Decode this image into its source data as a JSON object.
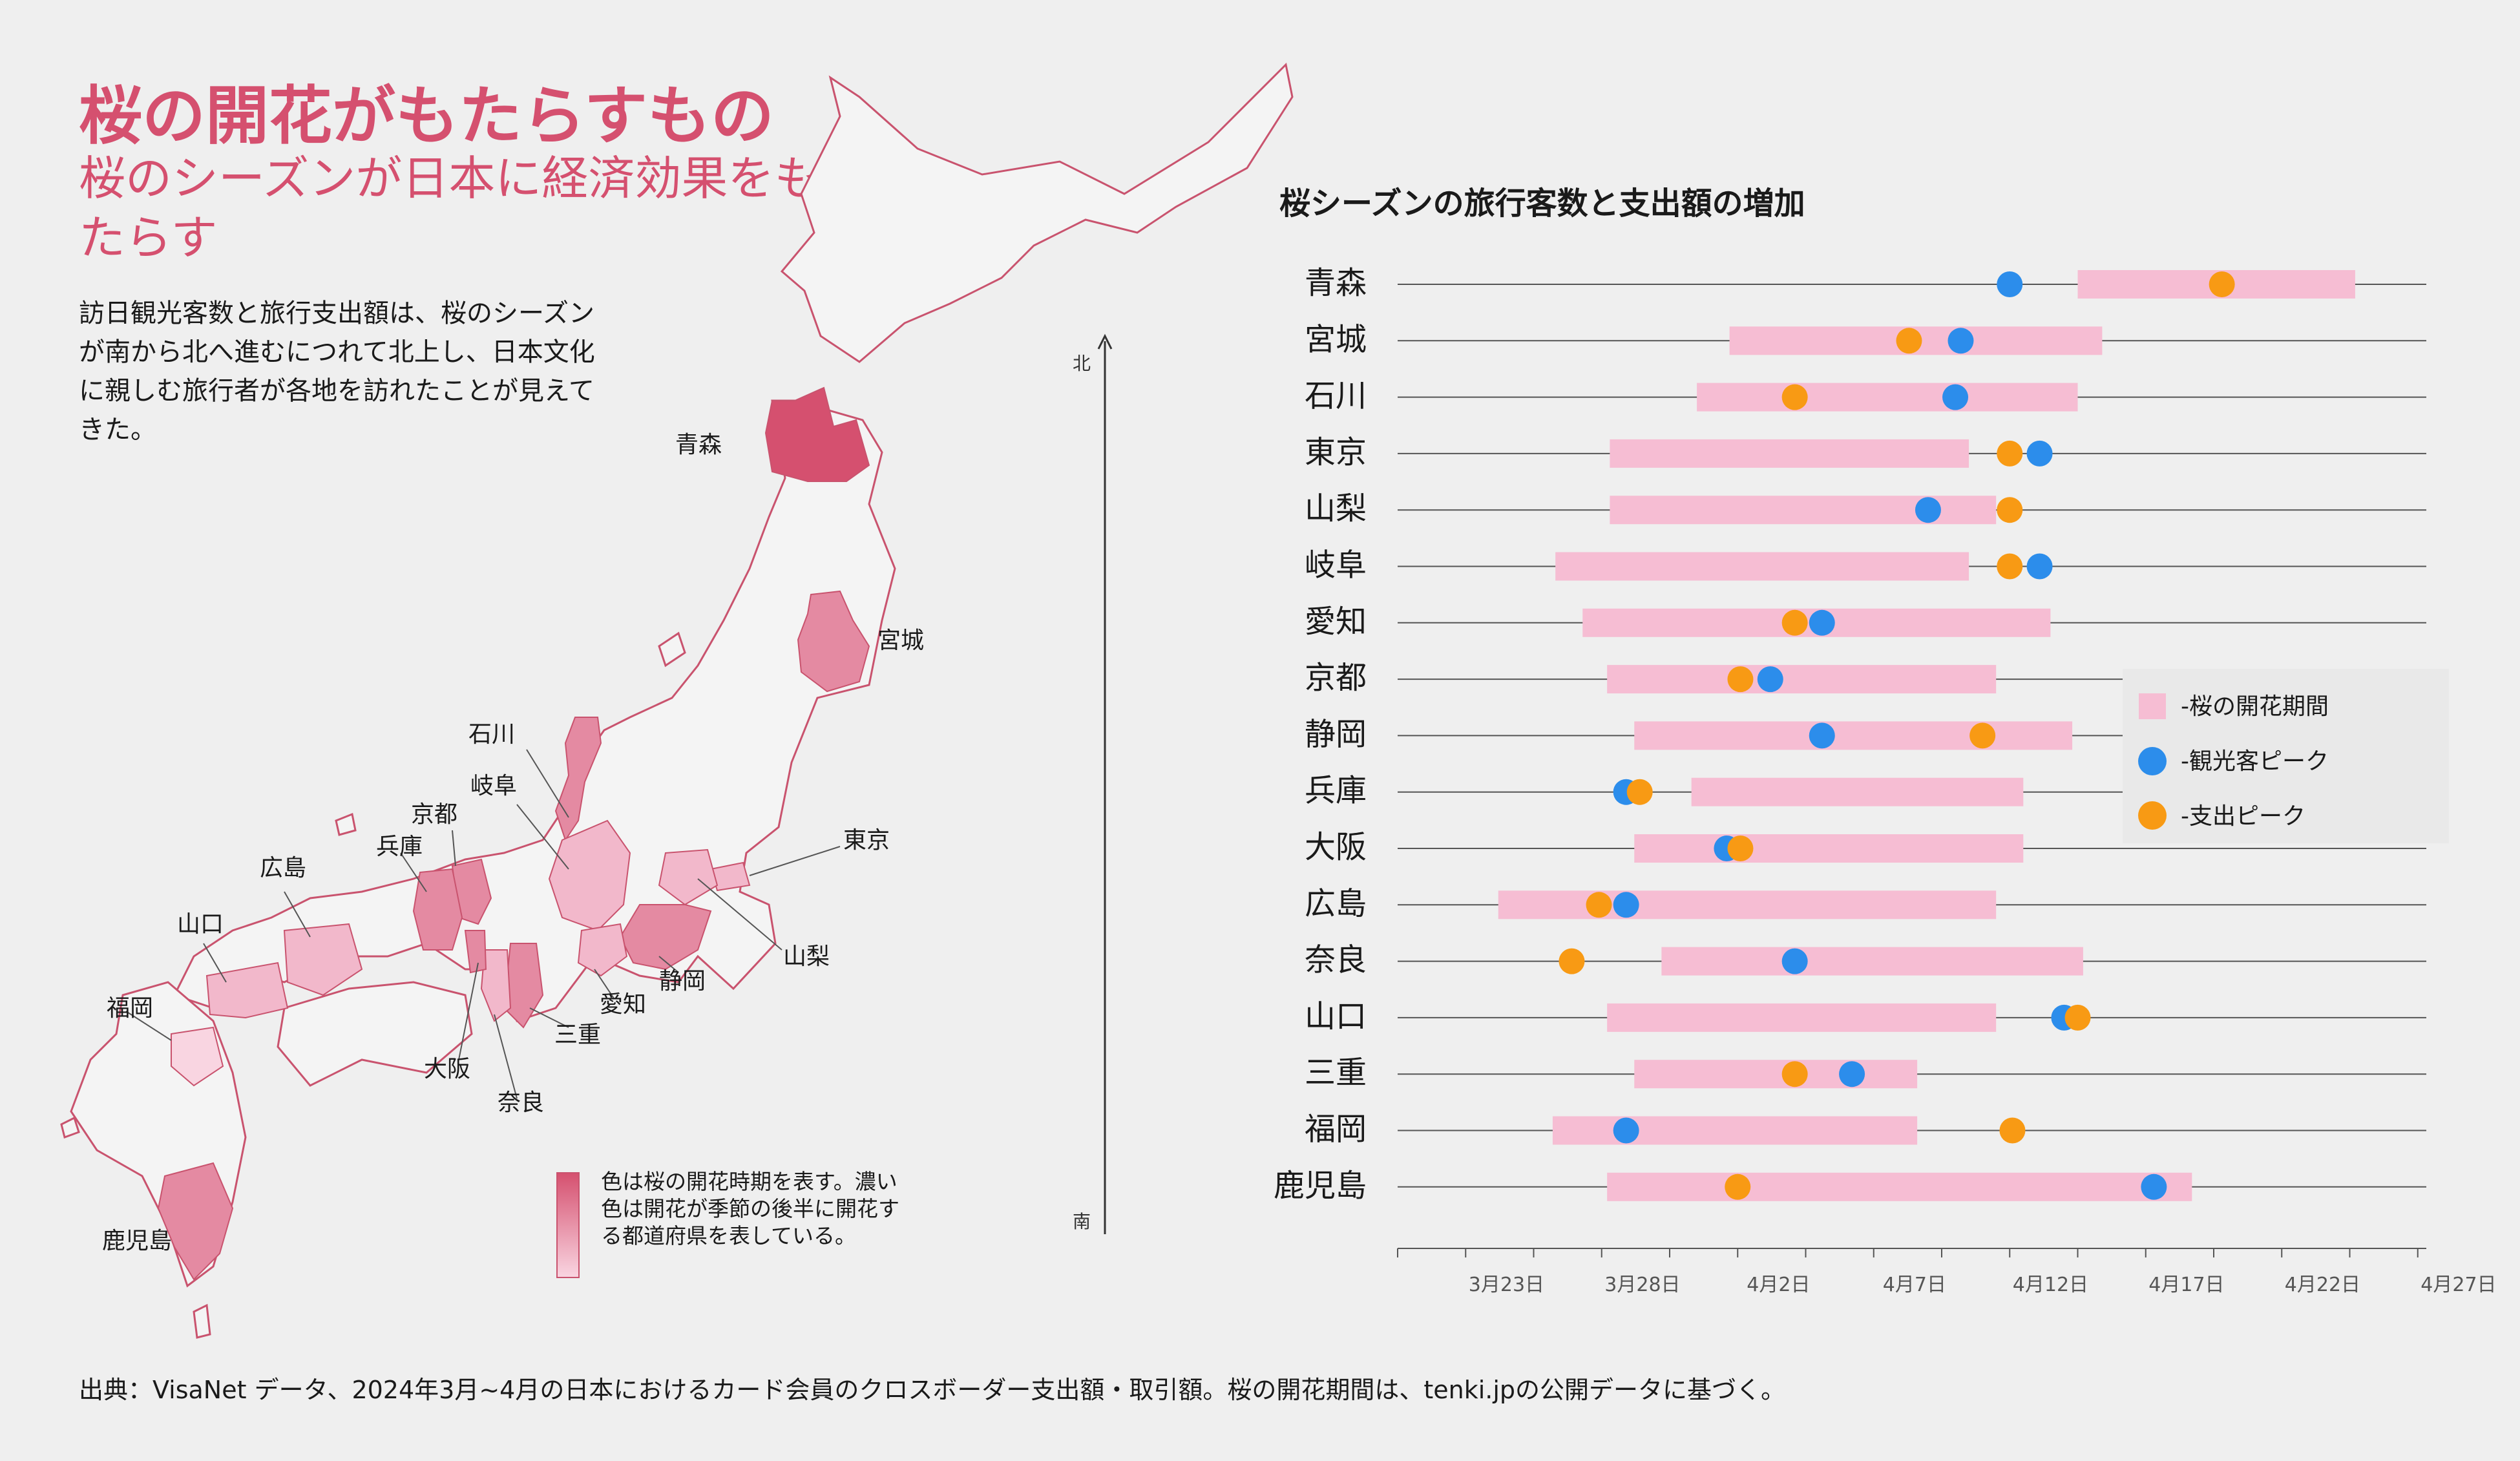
{
  "header": {
    "title": "桜の開花がもたらすもの",
    "subtitle": "桜のシーズンが日本に経済効果をもたらす",
    "intro": "訪日観光客数と旅行支出額は、桜のシーズンが南から北へ進むにつれて北上し、日本文化に親しむ旅行者が各地を訪れたことが見えてきた。"
  },
  "map": {
    "north_label": "北",
    "south_label": "南",
    "legend_text": "色は桜の開花時期を表す。濃い色は開花が季節の後半に開花する都道府県を表している。",
    "labels": {
      "aomori": "青森",
      "miyagi": "宮城",
      "ishikawa": "石川",
      "gifu": "岐阜",
      "kyoto": "京都",
      "hyogo": "兵庫",
      "hiroshima": "広島",
      "yamaguchi": "山口",
      "fukuoka": "福岡",
      "osaka": "大阪",
      "nara": "奈良",
      "mie": "三重",
      "aichi": "愛知",
      "shizuoka": "静岡",
      "yamanashi": "山梨",
      "tokyo": "東京",
      "kagoshima": "鹿児島"
    },
    "colors": {
      "dark": "#d5506f",
      "mid": "#e48aa2",
      "light": "#f2b8cb",
      "pale": "#f9d5e1",
      "land": "#f4f4f4",
      "border": "#c9536e"
    }
  },
  "chart_data": {
    "type": "range-dot",
    "title": "桜シーズンの旅行客数と支出額の増加",
    "x_type": "date",
    "x_range": [
      "2024-03-19",
      "2024-04-28"
    ],
    "x_ticks": [
      "3月23日",
      "3月28日",
      "4月2日",
      "4月7日",
      "4月12日",
      "4月17日",
      "4月22日",
      "4月27日"
    ],
    "x_tick_days": [
      4,
      9,
      14,
      19,
      24,
      29,
      34,
      39
    ],
    "day_zero": "2024-03-19",
    "legend": {
      "bloom": "-桜の開花期間",
      "visitor": "-観光客ピーク",
      "spend": "-支出ピーク"
    },
    "colors": {
      "bloom": "#f6bdd3",
      "visitor": "#2c8deb",
      "spend": "#f89a14"
    },
    "rows": [
      {
        "name": "青森",
        "bloom_start": 25,
        "bloom_end": 35.2,
        "visitor_peak": 22.5,
        "spend_peak": 30.3
      },
      {
        "name": "宮城",
        "bloom_start": 12.2,
        "bloom_end": 25.9,
        "visitor_peak": 20.7,
        "spend_peak": 18.8
      },
      {
        "name": "石川",
        "bloom_start": 11,
        "bloom_end": 25,
        "visitor_peak": 20.5,
        "spend_peak": 14.6
      },
      {
        "name": "東京",
        "bloom_start": 7.8,
        "bloom_end": 21,
        "visitor_peak": 23.6,
        "spend_peak": 22.5
      },
      {
        "name": "山梨",
        "bloom_start": 7.8,
        "bloom_end": 22,
        "visitor_peak": 19.5,
        "spend_peak": 22.5
      },
      {
        "name": "岐阜",
        "bloom_start": 5.8,
        "bloom_end": 21,
        "visitor_peak": 23.6,
        "spend_peak": 22.5
      },
      {
        "name": "愛知",
        "bloom_start": 6.8,
        "bloom_end": 24,
        "visitor_peak": 15.6,
        "spend_peak": 14.6
      },
      {
        "name": "京都",
        "bloom_start": 7.7,
        "bloom_end": 22,
        "visitor_peak": 13.7,
        "spend_peak": 12.6
      },
      {
        "name": "静岡",
        "bloom_start": 8.7,
        "bloom_end": 24.8,
        "visitor_peak": 15.6,
        "spend_peak": 21.5
      },
      {
        "name": "兵庫",
        "bloom_start": 10.8,
        "bloom_end": 23,
        "visitor_peak": 8.4,
        "spend_peak": 8.9
      },
      {
        "name": "大阪",
        "bloom_start": 8.7,
        "bloom_end": 23,
        "visitor_peak": 12.1,
        "spend_peak": 12.6
      },
      {
        "name": "広島",
        "bloom_start": 3.7,
        "bloom_end": 22,
        "visitor_peak": 8.4,
        "spend_peak": 7.4
      },
      {
        "name": "奈良",
        "bloom_start": 9.7,
        "bloom_end": 25.2,
        "visitor_peak": 14.6,
        "spend_peak": 6.4
      },
      {
        "name": "山口",
        "bloom_start": 7.7,
        "bloom_end": 22,
        "visitor_peak": 24.5,
        "spend_peak": 25
      },
      {
        "name": "三重",
        "bloom_start": 8.7,
        "bloom_end": 19.1,
        "visitor_peak": 16.7,
        "spend_peak": 14.6
      },
      {
        "name": "福岡",
        "bloom_start": 5.7,
        "bloom_end": 19.1,
        "visitor_peak": 8.4,
        "spend_peak": 22.6
      },
      {
        "name": "鹿児島",
        "bloom_start": 7.7,
        "bloom_end": 29.2,
        "visitor_peak": 27.8,
        "spend_peak": 12.5
      }
    ]
  },
  "footer": {
    "source": "出典：VisaNet データ、2024年3月~4月の日本におけるカード会員のクロスボーダー支出額・取引額。桜の開花期間は、tenki.jpの公開データに基づく。"
  }
}
